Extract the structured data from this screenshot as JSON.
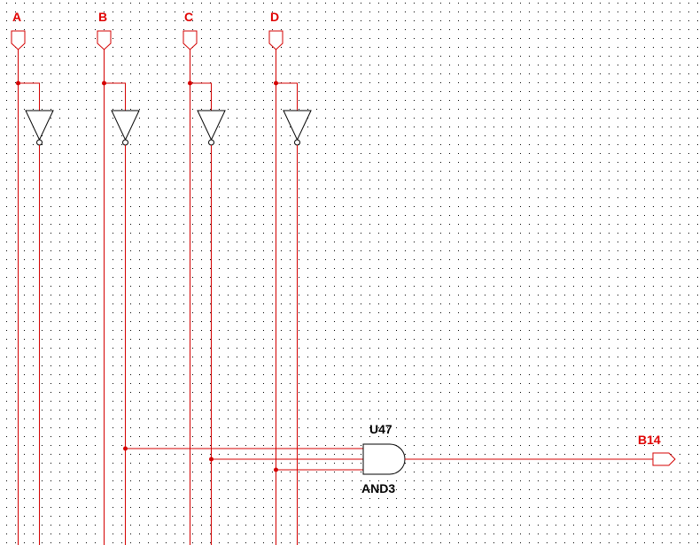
{
  "colors": {
    "wire": "#d40000",
    "gate": "#000000",
    "grid_dot": "#000000",
    "background": "#ffffff",
    "label_red": "#e00000",
    "label_black": "#000000"
  },
  "inputs": [
    {
      "name": "A"
    },
    {
      "name": "B"
    },
    {
      "name": "C"
    },
    {
      "name": "D"
    }
  ],
  "gate": {
    "ref": "U47",
    "type": "AND3"
  },
  "output": {
    "name": "B14"
  }
}
